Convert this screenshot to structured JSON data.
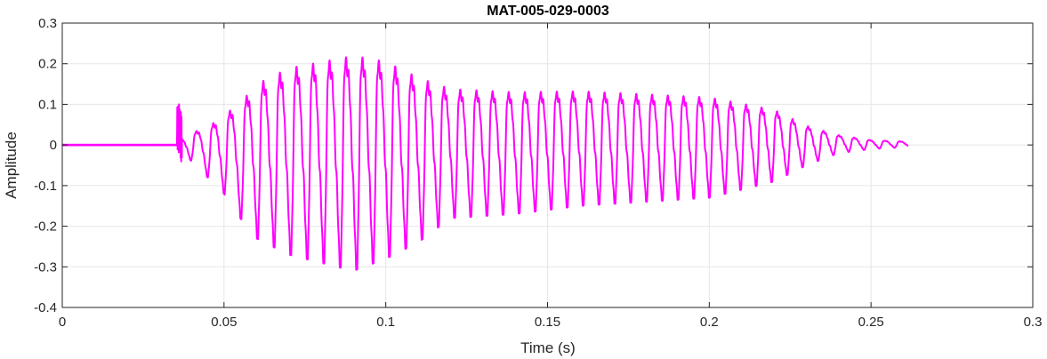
{
  "chart_data": {
    "type": "line",
    "title": "MAT-005-029-0003",
    "xlabel": "Time (s)",
    "ylabel": "Amplitude",
    "xlim": [
      0,
      0.3
    ],
    "ylim": [
      -0.4,
      0.3
    ],
    "xticks": [
      0,
      0.05,
      0.1,
      0.15,
      0.2,
      0.25,
      0.3
    ],
    "xtick_labels": [
      "0",
      "0.05",
      "0.1",
      "0.15",
      "0.2",
      "0.25",
      "0.3"
    ],
    "yticks": [
      -0.4,
      -0.3,
      -0.2,
      -0.1,
      0,
      0.1,
      0.2,
      0.3
    ],
    "ytick_labels": [
      "-0.4",
      "-0.3",
      "-0.2",
      "-0.1",
      "0",
      "0.1",
      "0.2",
      "0.3"
    ],
    "grid": true,
    "line_color": "#ff00ff",
    "signal": {
      "start": 0,
      "onset": 0.0355,
      "end": 0.2615,
      "cycle_period_start": 0.0052,
      "cycle_period_end": 0.0047,
      "envelope_times": [
        0.0355,
        0.037,
        0.04,
        0.045,
        0.05,
        0.055,
        0.06,
        0.07,
        0.08,
        0.09,
        0.1,
        0.11,
        0.12,
        0.14,
        0.16,
        0.18,
        0.2,
        0.21,
        0.22,
        0.23,
        0.24,
        0.25,
        0.2615
      ],
      "envelope_peaks": [
        0.08,
        0.02,
        0.04,
        0.06,
        0.1,
        0.14,
        0.2,
        0.25,
        0.27,
        0.29,
        0.27,
        0.22,
        0.18,
        0.17,
        0.17,
        0.16,
        0.15,
        0.13,
        0.11,
        0.06,
        0.03,
        0.015,
        0.01
      ],
      "envelope_troughs": [
        -0.07,
        -0.02,
        -0.04,
        -0.08,
        -0.12,
        -0.18,
        -0.23,
        -0.27,
        -0.29,
        -0.31,
        -0.28,
        -0.24,
        -0.18,
        -0.17,
        -0.15,
        -0.14,
        -0.13,
        -0.11,
        -0.09,
        -0.05,
        -0.02,
        -0.01,
        -0.005
      ]
    }
  }
}
